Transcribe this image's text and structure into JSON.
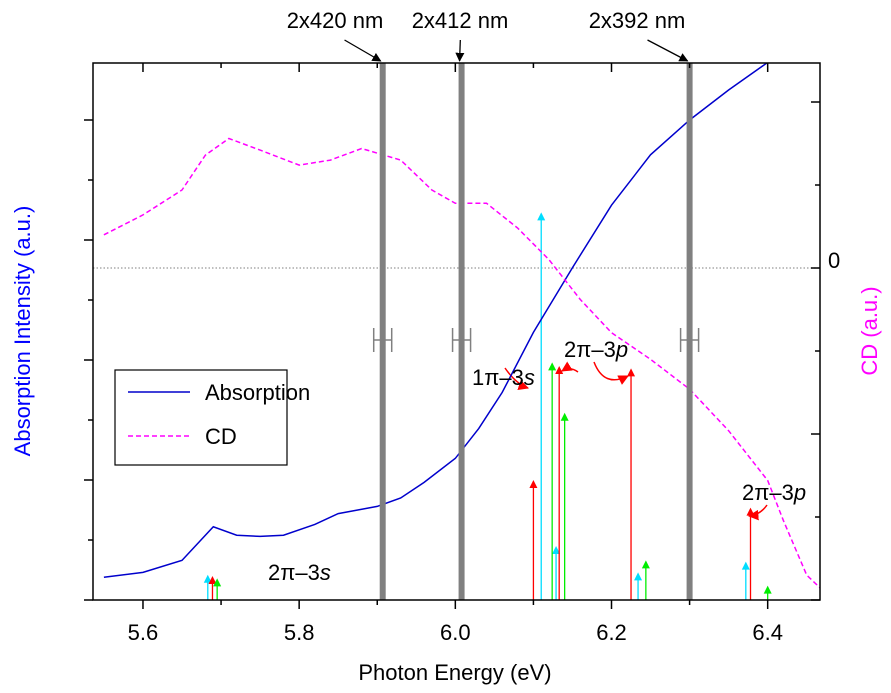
{
  "chart_data": {
    "type": "line",
    "xlabel": "Photon Energy (eV)",
    "ylabel": "Absorption Intensity (a.u.)",
    "y2label": "CD (a.u.)",
    "xlim": [
      5.536,
      6.467
    ],
    "xticks": [
      5.6,
      5.8,
      {
        "value": 6.0,
        "label": "6.0"
      },
      6.2,
      6.4
    ],
    "x_minor_ticks": [
      5.7,
      5.9,
      6.1,
      6.3
    ],
    "ylim": [
      0,
      4.475
    ],
    "y_tick_marks": [
      0,
      1,
      2,
      3,
      4
    ],
    "y_minor_ticks": [
      0.5,
      1.5,
      2.5,
      3.5
    ],
    "y2lim": [
      -2.0,
      1.235
    ],
    "y2ticks": [
      0
    ],
    "y2_tick_marks": [
      -2,
      -1,
      1
    ],
    "y2_minor_ticks": [
      -1.5,
      -0.5,
      0.5
    ],
    "legend": "lower left",
    "series": [
      {
        "name": "Absorption",
        "color": "#0000cc",
        "x": [
          5.55,
          5.6,
          5.65,
          5.69,
          5.72,
          5.75,
          5.78,
          5.82,
          5.85,
          5.9,
          5.93,
          5.96,
          6.0,
          6.03,
          6.06,
          6.1,
          6.15,
          6.2,
          6.25,
          6.3,
          6.35,
          6.4
        ],
        "values": [
          0.19,
          0.23,
          0.33,
          0.61,
          0.54,
          0.53,
          0.54,
          0.63,
          0.72,
          0.78,
          0.85,
          0.98,
          1.18,
          1.43,
          1.73,
          2.23,
          2.77,
          3.29,
          3.71,
          4.0,
          4.25,
          4.48
        ]
      },
      {
        "name": "CD",
        "color": "#ff00ff",
        "axis": "y2",
        "dashed": true,
        "x": [
          5.55,
          5.6,
          5.65,
          5.68,
          5.71,
          5.75,
          5.8,
          5.84,
          5.88,
          5.93,
          5.97,
          6.0,
          6.04,
          6.08,
          6.12,
          6.16,
          6.2,
          6.25,
          6.3,
          6.35,
          6.4,
          6.42,
          6.45,
          6.47
        ],
        "values": [
          0.2,
          0.32,
          0.47,
          0.68,
          0.78,
          0.71,
          0.62,
          0.65,
          0.72,
          0.65,
          0.47,
          0.39,
          0.39,
          0.24,
          0.05,
          -0.19,
          -0.39,
          -0.55,
          -0.73,
          -0.98,
          -1.28,
          -1.52,
          -1.85,
          -1.94
        ]
      }
    ],
    "sticks": [
      {
        "color": "#00ddff",
        "x": [
          5.683,
          6.11,
          6.129,
          6.234,
          6.372
        ],
        "values": [
          0.21,
          3.23,
          0.45,
          0.23,
          0.32
        ]
      },
      {
        "color": "#ff0000",
        "x": [
          5.689,
          6.1,
          6.133,
          6.225,
          6.378
        ],
        "values": [
          0.2,
          1.0,
          1.95,
          1.93,
          0.77
        ]
      },
      {
        "color": "#00ee00",
        "x": [
          5.695,
          6.124,
          6.14,
          6.244,
          6.4
        ],
        "values": [
          0.18,
          1.98,
          1.56,
          0.33,
          0.12
        ]
      }
    ],
    "vlines": {
      "color": "#808080",
      "x": [
        5.907,
        6.008,
        6.3
      ],
      "labels": [
        "2x420 nm",
        "2x412 nm",
        "2x392 nm"
      ]
    },
    "zero_line": {
      "value": 0,
      "axis": "y2",
      "color": "#999999"
    },
    "annotations": [
      {
        "prefix": "2π–3",
        "orbital": "s"
      },
      {
        "prefix": "1π–3",
        "orbital": "s"
      },
      {
        "prefix": "2π–3",
        "orbital": "p"
      },
      {
        "prefix": "2π–3",
        "orbital": "p"
      }
    ]
  }
}
